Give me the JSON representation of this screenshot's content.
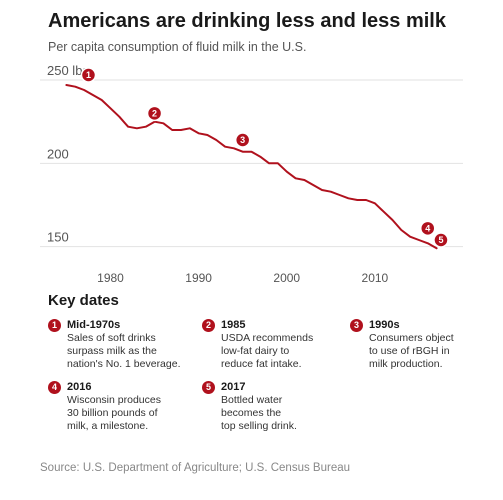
{
  "title": "Americans are drinking less and less milk",
  "subtitle": "Per capita consumption of fluid milk in the U.S.",
  "chart_data": {
    "type": "line",
    "x": [
      1975,
      1976,
      1977,
      1978,
      1979,
      1980,
      1981,
      1982,
      1983,
      1984,
      1985,
      1986,
      1987,
      1988,
      1989,
      1990,
      1991,
      1992,
      1993,
      1994,
      1995,
      1996,
      1997,
      1998,
      1999,
      2000,
      2001,
      2002,
      2003,
      2004,
      2005,
      2006,
      2007,
      2008,
      2009,
      2010,
      2011,
      2012,
      2013,
      2014,
      2015,
      2016,
      2017
    ],
    "y": [
      247,
      246,
      244,
      241,
      238,
      233,
      228,
      222,
      221,
      222,
      225,
      224,
      220,
      220,
      221,
      218,
      217,
      214,
      210,
      209,
      207,
      207,
      204,
      200,
      200,
      195,
      191,
      190,
      187,
      184,
      183,
      181,
      179,
      178,
      178,
      176,
      171,
      166,
      160,
      156,
      154,
      152,
      149
    ],
    "ytick_labels": [
      "250 lbs.",
      "200",
      "150"
    ],
    "yticks": [
      250,
      200,
      150
    ],
    "xticks": [
      "1980",
      "1990",
      "2000",
      "2010"
    ],
    "xlim": [
      1972,
      2020
    ],
    "ylim": [
      142,
      262
    ],
    "grid": "horizontal",
    "line_color": "#b0111d",
    "markers": [
      {
        "n": "1",
        "x": 1977.5,
        "y": 253
      },
      {
        "n": "2",
        "x": 1985,
        "y": 230
      },
      {
        "n": "3",
        "x": 1995,
        "y": 214
      },
      {
        "n": "4",
        "x": 2016,
        "y": 161
      },
      {
        "n": "5",
        "x": 2017.5,
        "y": 154
      }
    ]
  },
  "key_dates": {
    "title": "Key dates",
    "events": [
      {
        "n": "1",
        "year": "Mid-1970s",
        "lines": [
          "Sales of soft drinks",
          "surpass milk as the",
          "nation's No. 1 beverage."
        ]
      },
      {
        "n": "2",
        "year": "1985",
        "lines": [
          "USDA recommends",
          "low-fat dairy to",
          "reduce fat intake."
        ]
      },
      {
        "n": "3",
        "year": "1990s",
        "lines": [
          "Consumers object",
          "to use of rBGH in",
          "milk production."
        ]
      },
      {
        "n": "4",
        "year": "2016",
        "lines": [
          "Wisconsin produces",
          "30 billion pounds of",
          "milk, a milestone."
        ]
      },
      {
        "n": "5",
        "year": "2017",
        "lines": [
          "Bottled water",
          "becomes the",
          "top selling drink."
        ]
      }
    ]
  },
  "source": "Source: U.S. Department of Agriculture; U.S. Census Bureau"
}
